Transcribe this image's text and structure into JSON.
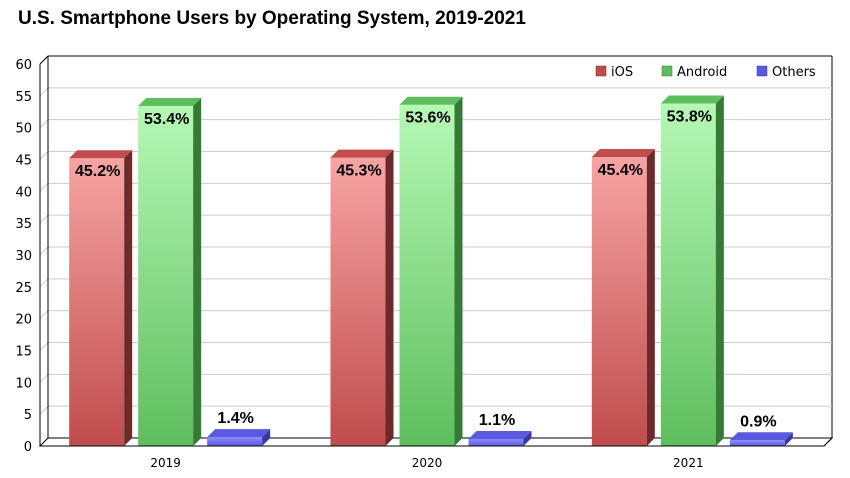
{
  "chart_data": {
    "type": "bar",
    "title": "U.S. Smartphone Users by Operating System, 2019-2021",
    "categories": [
      "2019",
      "2020",
      "2021"
    ],
    "series": [
      {
        "name": "iOS",
        "values": [
          45.2,
          45.3,
          45.4
        ],
        "labels": [
          "45.2%",
          "45.3%",
          "45.4%"
        ],
        "color": "#e06060"
      },
      {
        "name": "Android",
        "values": [
          53.4,
          53.6,
          53.8
        ],
        "labels": [
          "53.4%",
          "53.6%",
          "53.8%"
        ],
        "color": "#7de87d"
      },
      {
        "name": "Others",
        "values": [
          1.4,
          1.1,
          0.9
        ],
        "labels": [
          "1.4%",
          "1.1%",
          "0.9%"
        ],
        "color": "#6a6af0"
      }
    ],
    "ylim": [
      0,
      60
    ],
    "yticks": [
      "0",
      "5",
      "10",
      "15",
      "20",
      "25",
      "30",
      "35",
      "40",
      "45",
      "50",
      "55",
      "60"
    ],
    "grid": true,
    "legend": "top-right",
    "style": "3d"
  }
}
